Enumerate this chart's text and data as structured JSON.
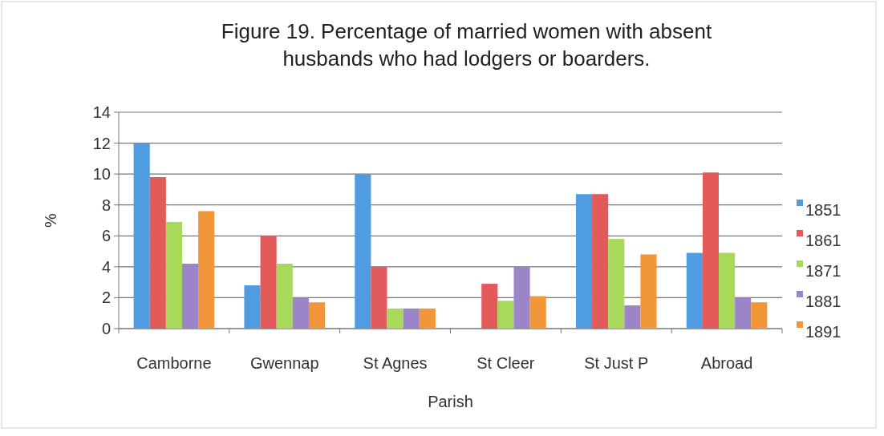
{
  "chart_data": {
    "type": "bar",
    "title": "Figure 19. Percentage of married women with absent husbands who had lodgers or boarders.",
    "xlabel": "Parish",
    "ylabel": "%",
    "categories": [
      "Camborne",
      "Gwennap",
      "St Agnes",
      "St Cleer",
      "St Just P",
      "Abroad"
    ],
    "series": [
      {
        "name": "1851",
        "color": "#4f9de0",
        "values": [
          12,
          2.8,
          10,
          0,
          8.7,
          4.9
        ]
      },
      {
        "name": "1861",
        "color": "#e25a5a",
        "values": [
          9.8,
          6,
          4,
          2.9,
          8.7,
          10.1
        ]
      },
      {
        "name": "1871",
        "color": "#a8d95a",
        "values": [
          6.9,
          4.2,
          1.3,
          1.8,
          5.8,
          4.9
        ]
      },
      {
        "name": "1881",
        "color": "#9b84c8",
        "values": [
          4.2,
          2,
          1.3,
          4,
          1.5,
          2
        ]
      },
      {
        "name": "1891",
        "color": "#f2963a",
        "values": [
          7.6,
          1.7,
          1.3,
          2.1,
          4.8,
          1.7
        ]
      }
    ],
    "ylim": [
      0,
      14
    ],
    "yticks": [
      0,
      2,
      4,
      6,
      8,
      10,
      12,
      14
    ],
    "grid": "y",
    "legend": "right"
  }
}
